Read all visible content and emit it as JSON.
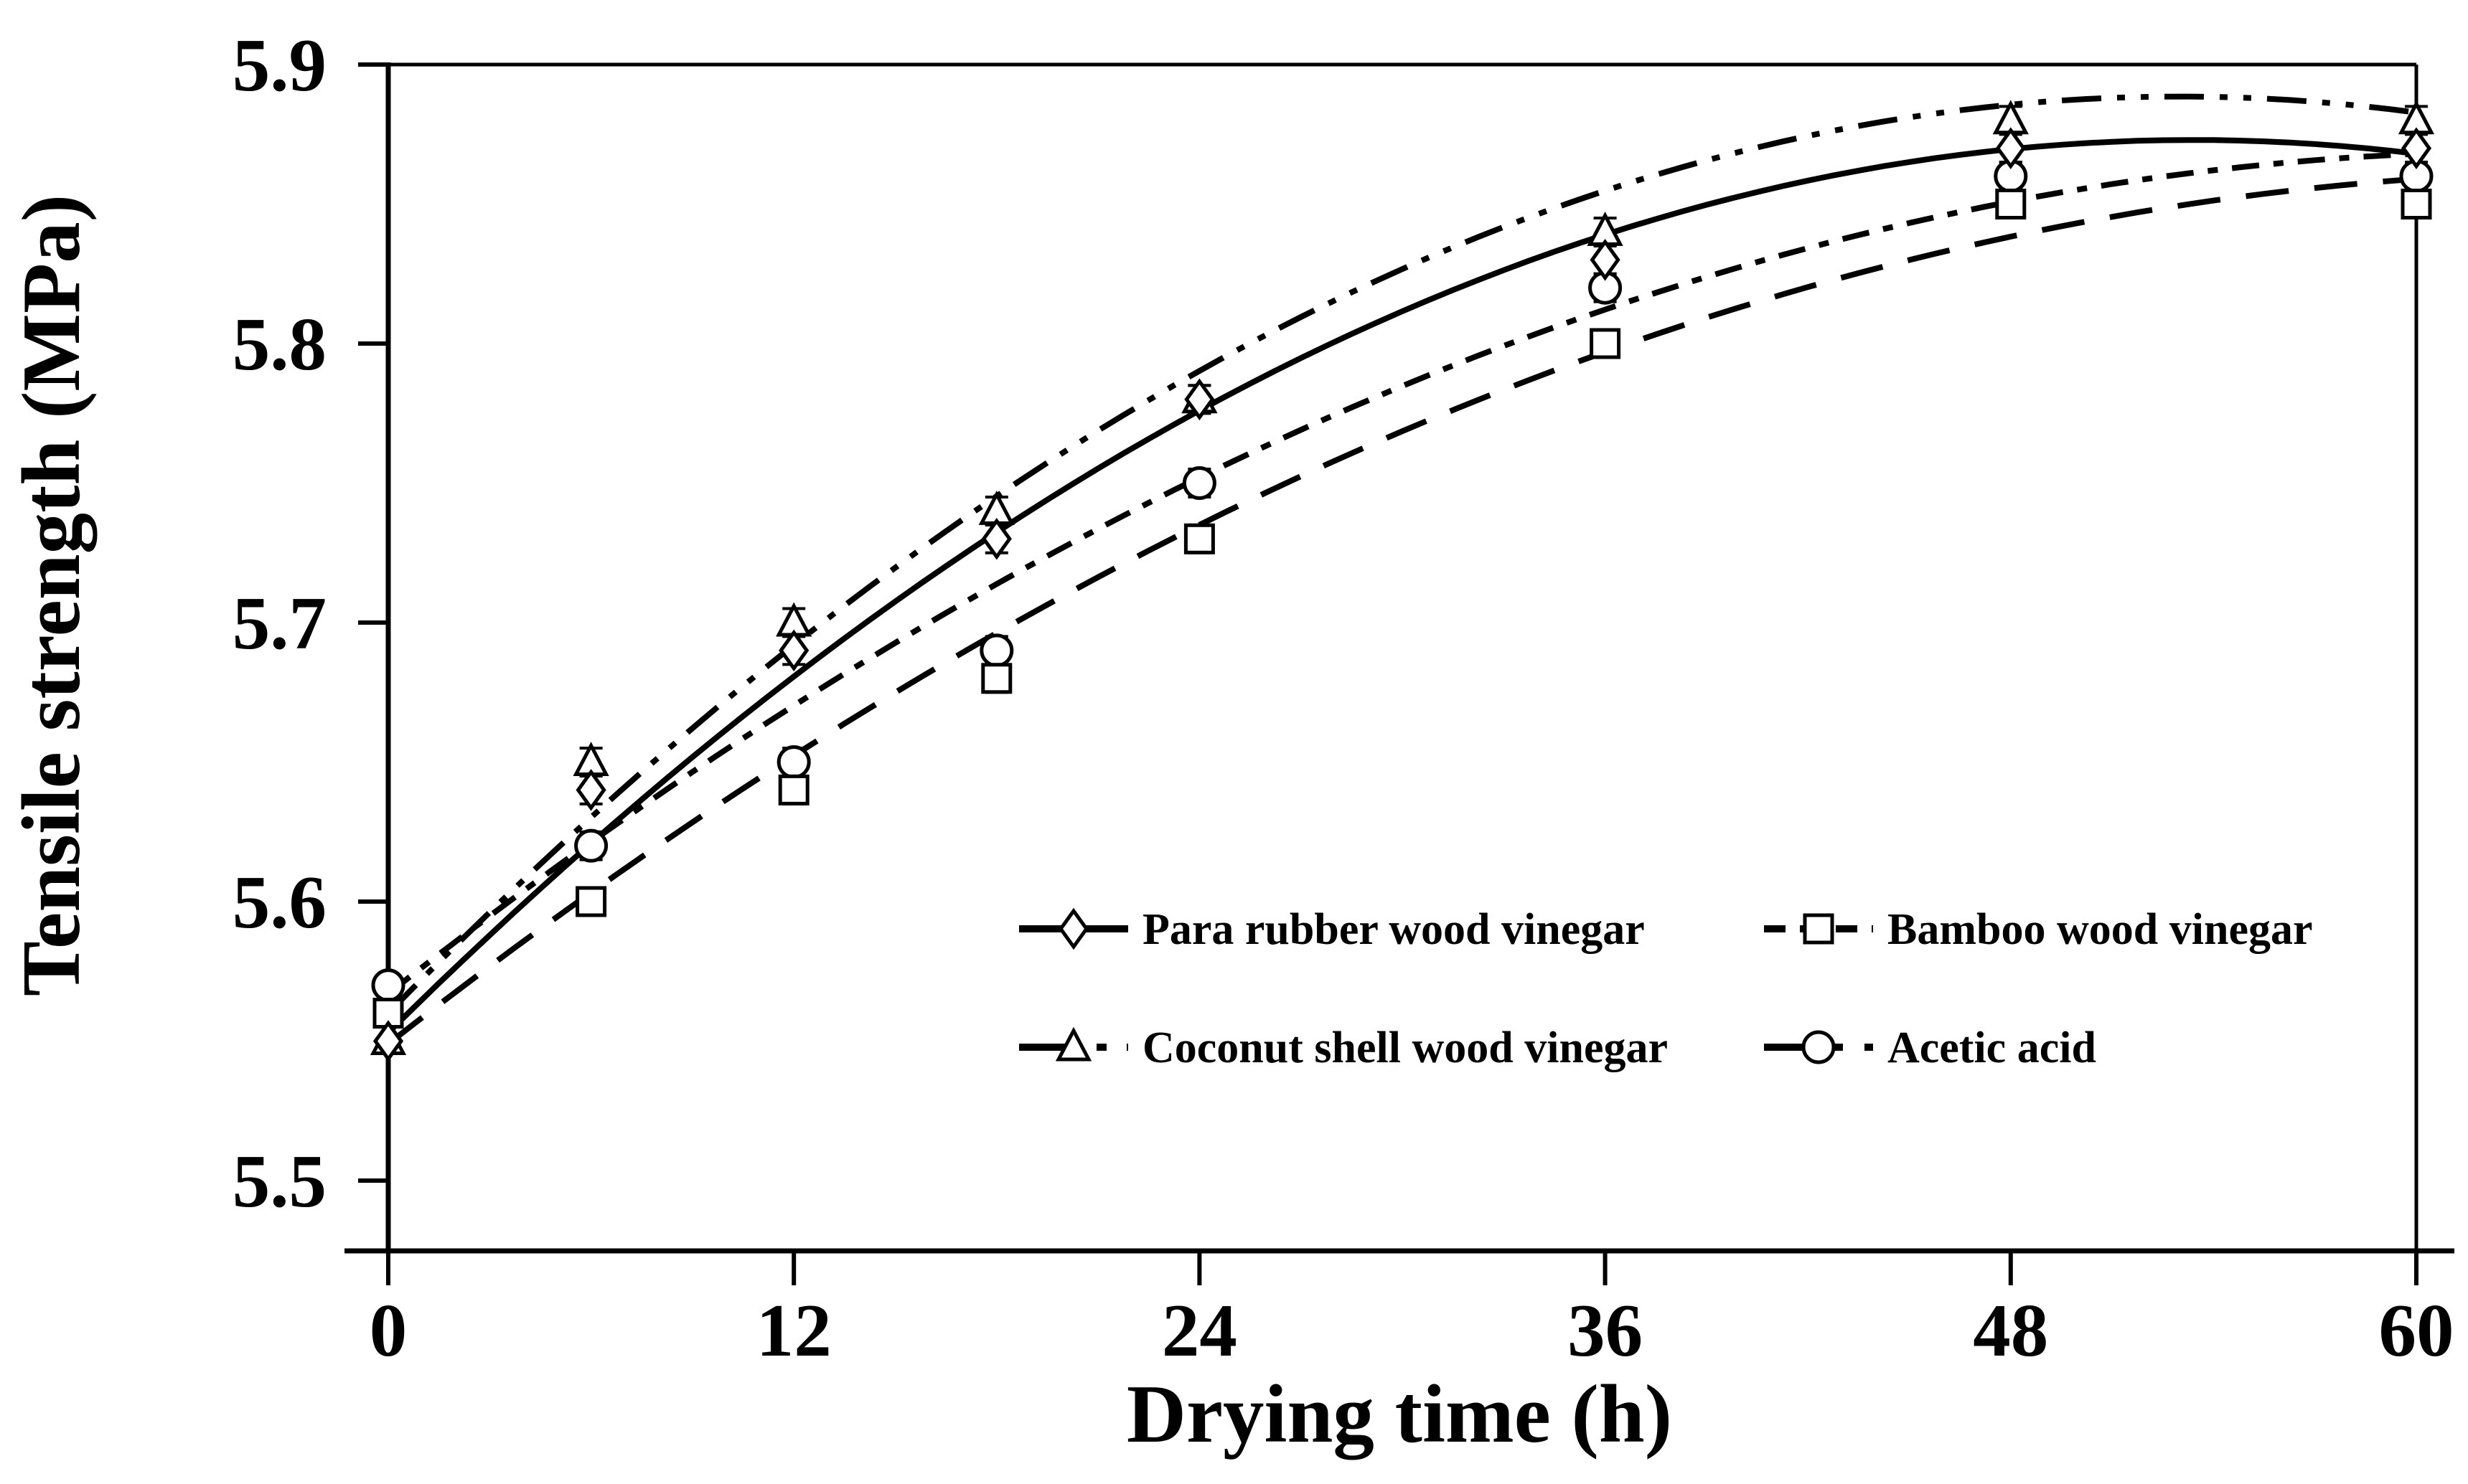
{
  "figure": {
    "background": "#ffffff",
    "ink_color": "#000000"
  },
  "chart_data": {
    "type": "line",
    "title": "",
    "xlabel": "Drying time (h)",
    "ylabel": "Tensile strength (MPa)",
    "x_tick_labels": [
      "0",
      "12",
      "24",
      "36",
      "48",
      "60"
    ],
    "x_ticks": [
      0,
      12,
      24,
      36,
      48,
      60
    ],
    "y_tick_labels": [
      "5.5",
      "5.6",
      "5.7",
      "5.8",
      "5.9"
    ],
    "y_ticks": [
      5.5,
      5.6,
      5.7,
      5.8,
      5.9
    ],
    "xlim": [
      0,
      60
    ],
    "ylim": [
      5.475,
      5.9
    ],
    "grid": false,
    "legend_position": "inside lower-center, 2 columns",
    "x": [
      0,
      6,
      12,
      18,
      24,
      36,
      48,
      60
    ],
    "error_bar": 0.005,
    "series": [
      {
        "name": "Coconut shell wood vinegar",
        "marker": "triangle",
        "line_style": "dash-dot-dot",
        "dash": "55 22 11 22 11 22",
        "legend_dash": "80 28 14 28",
        "values": [
          5.55,
          5.65,
          5.7,
          5.74,
          5.78,
          5.84,
          5.88,
          5.88
        ],
        "trend": {
          "a": 5.56,
          "b": 0.0124,
          "c": -0.000117
        }
      },
      {
        "name": "Acetic acid",
        "marker": "circle",
        "line_style": "dash-dot",
        "dash": "38 20 14 20",
        "legend_dash": "110 30 12 30",
        "values": [
          5.57,
          5.62,
          5.65,
          5.69,
          5.75,
          5.82,
          5.86,
          5.86
        ],
        "trend": {
          "a": 5.567,
          "b": 0.0095027,
          "c": -7.477e-05
        }
      },
      {
        "name": "Bamboo wood vinegar",
        "marker": "square",
        "line_style": "dashed",
        "dash": "60 36",
        "legend_dash": "30 20",
        "values": [
          5.56,
          5.6,
          5.64,
          5.68,
          5.73,
          5.8,
          5.85,
          5.85
        ],
        "trend": {
          "a": 5.549,
          "b": 0.0094722,
          "c": -7.176e-05
        }
      },
      {
        "name": "Para rubber wood vinegar",
        "marker": "diamond",
        "line_style": "solid",
        "dash": "",
        "legend_dash": "",
        "values": [
          5.55,
          5.64,
          5.69,
          5.73,
          5.78,
          5.83,
          5.87,
          5.87
        ],
        "trend": {
          "a": 5.553,
          "b": 0.011987,
          "c": -0.00011227
        }
      }
    ],
    "legend_order": [
      "Para rubber wood vinegar",
      "Bamboo wood vinegar",
      "Coconut shell wood vinegar",
      "Acetic acid"
    ]
  }
}
